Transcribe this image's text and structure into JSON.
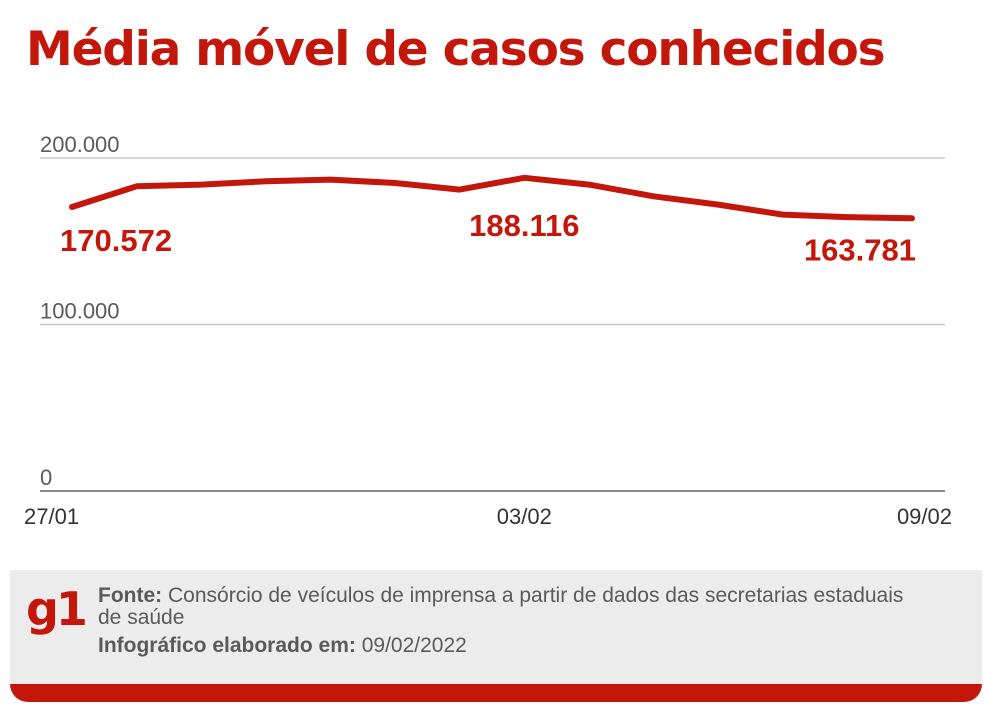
{
  "title": "Média móvel de casos conhecidos",
  "footer": {
    "logo": "g1",
    "source_label": "Fonte:",
    "source_text": "Consórcio de veículos de imprensa a partir de dados das secretarias estaduais de saúde",
    "date_label": "Infográfico elaborado em:",
    "date_value": "09/02/2022"
  },
  "colors": {
    "accent": "#c4170c",
    "axis_text": "#5a5a5a",
    "grid": "#c8c8c8",
    "footer_bg": "#ececec"
  },
  "chart_data": {
    "type": "line",
    "title": "Média móvel de casos conhecidos",
    "xlabel": "",
    "ylabel": "",
    "ylim": [
      0,
      200000
    ],
    "y_ticks": [
      {
        "value": 0,
        "label": "0"
      },
      {
        "value": 100000,
        "label": "100.000"
      },
      {
        "value": 200000,
        "label": "200.000"
      }
    ],
    "x_tick_labels": [
      "27/01",
      "03/02",
      "09/02"
    ],
    "x": [
      "27/01",
      "28/01",
      "29/01",
      "30/01",
      "31/01",
      "01/02",
      "02/02",
      "03/02",
      "04/02",
      "05/02",
      "06/02",
      "07/02",
      "08/02",
      "09/02"
    ],
    "series": [
      {
        "values": [
          170572,
          183000,
          184000,
          186000,
          187000,
          185000,
          181000,
          188116,
          184000,
          177000,
          172000,
          166000,
          164500,
          163781
        ]
      }
    ],
    "annotations": [
      {
        "index": 0,
        "label": "170.572"
      },
      {
        "index": 7,
        "label": "188.116"
      },
      {
        "index": 13,
        "label": "163.781"
      }
    ],
    "grid": true
  }
}
